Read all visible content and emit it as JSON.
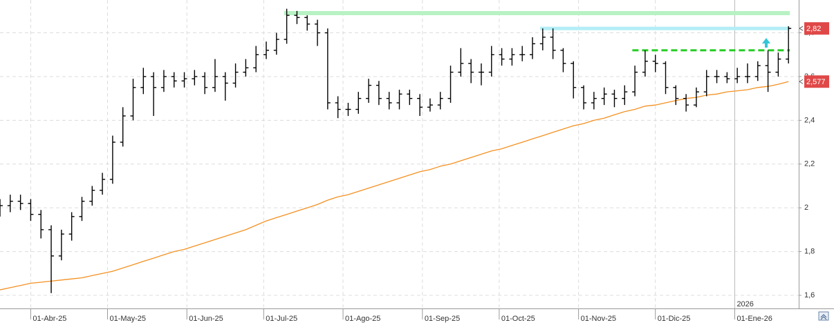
{
  "chart_data": {
    "type": "ohlc",
    "x": [
      "2025-03-20",
      "2025-03-24",
      "2025-03-28",
      "2025-04-01",
      "2025-04-05",
      "2025-04-09",
      "2025-04-13",
      "2025-04-17",
      "2025-04-21",
      "2025-04-25",
      "2025-04-29",
      "2025-05-03",
      "2025-05-07",
      "2025-05-11",
      "2025-05-15",
      "2025-05-19",
      "2025-05-23",
      "2025-05-27",
      "2025-05-31",
      "2025-06-04",
      "2025-06-08",
      "2025-06-12",
      "2025-06-16",
      "2025-06-20",
      "2025-06-24",
      "2025-06-28",
      "2025-07-02",
      "2025-07-06",
      "2025-07-10",
      "2025-07-14",
      "2025-07-18",
      "2025-07-22",
      "2025-07-26",
      "2025-07-30",
      "2025-08-03",
      "2025-08-07",
      "2025-08-11",
      "2025-08-15",
      "2025-08-19",
      "2025-08-23",
      "2025-08-27",
      "2025-08-31",
      "2025-09-04",
      "2025-09-08",
      "2025-09-12",
      "2025-09-16",
      "2025-09-20",
      "2025-09-24",
      "2025-09-28",
      "2025-10-02",
      "2025-10-06",
      "2025-10-10",
      "2025-10-14",
      "2025-10-18",
      "2025-10-22",
      "2025-10-26",
      "2025-10-30",
      "2025-11-03",
      "2025-11-07",
      "2025-11-11",
      "2025-11-15",
      "2025-11-19",
      "2025-11-23",
      "2025-11-27",
      "2025-12-01",
      "2025-12-05",
      "2025-12-09",
      "2025-12-13",
      "2025-12-17",
      "2025-12-21",
      "2025-12-25",
      "2025-12-29",
      "2026-01-02",
      "2026-01-06",
      "2026-01-10",
      "2026-01-14",
      "2026-01-18",
      "2026-01-22"
    ],
    "open": [
      1.99,
      2.01,
      2.03,
      2.02,
      1.97,
      1.9,
      1.78,
      1.88,
      1.96,
      2.03,
      2.08,
      2.13,
      2.3,
      2.42,
      2.55,
      2.6,
      2.55,
      2.6,
      2.58,
      2.59,
      2.6,
      2.55,
      2.6,
      2.57,
      2.62,
      2.64,
      2.7,
      2.72,
      2.77,
      2.88,
      2.87,
      2.84,
      2.8,
      2.48,
      2.45,
      2.45,
      2.5,
      2.56,
      2.5,
      2.48,
      2.52,
      2.5,
      2.46,
      2.47,
      2.5,
      2.62,
      2.66,
      2.62,
      2.62,
      2.7,
      2.68,
      2.7,
      2.7,
      2.75,
      2.78,
      2.72,
      2.66,
      2.55,
      2.48,
      2.5,
      2.52,
      2.5,
      2.53,
      2.62,
      2.67,
      2.66,
      2.55,
      2.5,
      2.47,
      2.53,
      2.6,
      2.6,
      2.59,
      2.6,
      2.6,
      2.65,
      2.62,
      2.68
    ],
    "high": [
      2.04,
      2.06,
      2.06,
      2.04,
      1.99,
      1.92,
      1.9,
      1.98,
      2.05,
      2.1,
      2.16,
      2.33,
      2.46,
      2.59,
      2.64,
      2.62,
      2.63,
      2.62,
      2.62,
      2.63,
      2.62,
      2.68,
      2.62,
      2.66,
      2.68,
      2.74,
      2.76,
      2.8,
      2.91,
      2.9,
      2.88,
      2.86,
      2.82,
      2.51,
      2.48,
      2.53,
      2.59,
      2.58,
      2.53,
      2.54,
      2.54,
      2.52,
      2.5,
      2.53,
      2.65,
      2.73,
      2.68,
      2.66,
      2.74,
      2.73,
      2.73,
      2.74,
      2.78,
      2.82,
      2.82,
      2.73,
      2.67,
      2.56,
      2.53,
      2.55,
      2.54,
      2.56,
      2.65,
      2.72,
      2.7,
      2.67,
      2.56,
      2.52,
      2.55,
      2.63,
      2.63,
      2.62,
      2.64,
      2.66,
      2.67,
      2.72,
      2.71,
      2.83
    ],
    "low": [
      1.96,
      1.98,
      1.99,
      1.94,
      1.86,
      1.61,
      1.76,
      1.85,
      1.94,
      2.01,
      2.06,
      2.11,
      2.28,
      2.4,
      2.52,
      2.42,
      2.53,
      2.55,
      2.55,
      2.56,
      2.52,
      2.53,
      2.49,
      2.55,
      2.6,
      2.62,
      2.68,
      2.7,
      2.75,
      2.84,
      2.81,
      2.74,
      2.45,
      2.41,
      2.42,
      2.43,
      2.48,
      2.47,
      2.45,
      2.45,
      2.47,
      2.42,
      2.44,
      2.45,
      2.48,
      2.6,
      2.57,
      2.56,
      2.6,
      2.65,
      2.65,
      2.67,
      2.68,
      2.72,
      2.68,
      2.62,
      2.5,
      2.45,
      2.45,
      2.47,
      2.46,
      2.47,
      2.51,
      2.6,
      2.62,
      2.52,
      2.47,
      2.44,
      2.46,
      2.51,
      2.57,
      2.57,
      2.57,
      2.57,
      2.58,
      2.53,
      2.6,
      2.66
    ],
    "close": [
      2.01,
      2.03,
      2.02,
      1.97,
      1.9,
      1.78,
      1.88,
      1.96,
      2.03,
      2.08,
      2.13,
      2.3,
      2.42,
      2.55,
      2.6,
      2.55,
      2.6,
      2.58,
      2.59,
      2.6,
      2.55,
      2.6,
      2.57,
      2.62,
      2.64,
      2.7,
      2.72,
      2.77,
      2.88,
      2.87,
      2.84,
      2.8,
      2.48,
      2.45,
      2.45,
      2.5,
      2.56,
      2.5,
      2.48,
      2.52,
      2.5,
      2.46,
      2.47,
      2.5,
      2.62,
      2.66,
      2.62,
      2.62,
      2.7,
      2.68,
      2.7,
      2.7,
      2.75,
      2.78,
      2.72,
      2.66,
      2.55,
      2.48,
      2.5,
      2.52,
      2.5,
      2.53,
      2.62,
      2.67,
      2.66,
      2.55,
      2.5,
      2.47,
      2.53,
      2.6,
      2.6,
      2.59,
      2.6,
      2.6,
      2.65,
      2.62,
      2.68,
      2.82
    ],
    "bar_color": "#000000",
    "moving_average": {
      "color": "#f39020",
      "values": [
        1.625,
        1.635,
        1.645,
        1.655,
        1.66,
        1.665,
        1.67,
        1.675,
        1.68,
        1.69,
        1.7,
        1.71,
        1.725,
        1.74,
        1.755,
        1.77,
        1.785,
        1.8,
        1.81,
        1.825,
        1.84,
        1.855,
        1.87,
        1.885,
        1.9,
        1.92,
        1.94,
        1.955,
        1.97,
        1.985,
        2.0,
        2.015,
        2.035,
        2.05,
        2.06,
        2.075,
        2.09,
        2.105,
        2.12,
        2.135,
        2.15,
        2.165,
        2.175,
        2.19,
        2.2,
        2.215,
        2.23,
        2.245,
        2.26,
        2.27,
        2.285,
        2.3,
        2.315,
        2.33,
        2.345,
        2.36,
        2.375,
        2.385,
        2.4,
        2.41,
        2.425,
        2.44,
        2.45,
        2.465,
        2.47,
        2.48,
        2.49,
        2.5,
        2.505,
        2.515,
        2.52,
        2.53,
        2.535,
        2.54,
        2.55,
        2.555,
        2.565,
        2.577
      ]
    },
    "xlim": [
      "2025-03-20",
      "2026-01-26"
    ],
    "xticks": [
      {
        "value": "2025-04-01",
        "label": "01-Abr-25"
      },
      {
        "value": "2025-05-01",
        "label": "01-May-25"
      },
      {
        "value": "2025-06-01",
        "label": "01-Jun-25"
      },
      {
        "value": "2025-07-01",
        "label": "01-Jul-25"
      },
      {
        "value": "2025-08-01",
        "label": "01-Ago-25"
      },
      {
        "value": "2025-09-01",
        "label": "01-Sep-25"
      },
      {
        "value": "2025-10-01",
        "label": "01-Oct-25"
      },
      {
        "value": "2025-11-01",
        "label": "01-Nov-25"
      },
      {
        "value": "2025-12-01",
        "label": "01-Dic-25"
      },
      {
        "value": "2026-01-01",
        "label": "01-Ene-26"
      }
    ],
    "ylim": [
      1.54,
      2.95
    ],
    "yticks": [
      {
        "value": 1.6,
        "label": "1,6"
      },
      {
        "value": 1.8,
        "label": "1,8"
      },
      2,
      {
        "value": 2.2,
        "label": "2,2"
      },
      {
        "value": 2.4,
        "label": "2,4"
      },
      {
        "value": 2.6,
        "label": "2,6"
      },
      {
        "value": 2.8,
        "label": "2,8"
      }
    ],
    "grid": true,
    "year_marker": {
      "value": "2026-01-01",
      "label": "2026"
    },
    "levels": [
      {
        "value": 2.89,
        "from": "2025-07-09",
        "color": "#b8f2c4",
        "width": 6,
        "dashed": false
      },
      {
        "value": 2.82,
        "from": "2025-10-17",
        "color": "#b4eef6",
        "width": 5,
        "dashed": false
      },
      {
        "value": 2.72,
        "from": "2025-11-22",
        "color": "#22cc22",
        "width": 3,
        "dashed": true
      }
    ],
    "price_labels": [
      {
        "value": 2.82,
        "label": "2,82",
        "color": "#e04848"
      },
      {
        "value": 2.577,
        "label": "2,577",
        "color": "#e04848"
      }
    ]
  }
}
